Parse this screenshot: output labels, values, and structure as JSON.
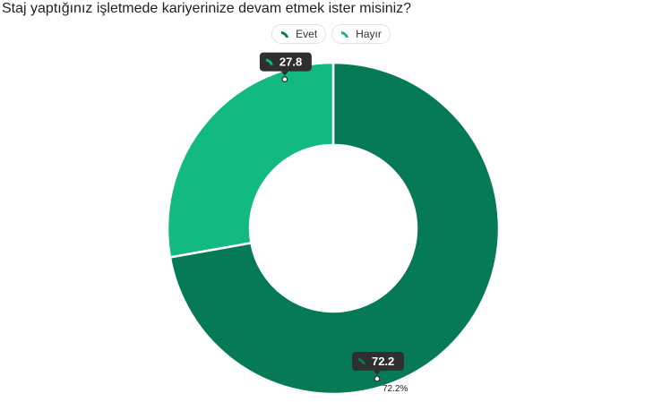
{
  "chart_data": {
    "type": "pie",
    "title": "Staj yaptığınız işletmede kariyerinize devam etmek ister misiniz?",
    "categories": [
      "Evet",
      "Hayır"
    ],
    "values": [
      72.2,
      27.8
    ],
    "colors": [
      "#067a56",
      "#12b981"
    ],
    "donut": true,
    "legend_position": "top-center",
    "tooltips": [
      "72.2",
      "27.8"
    ],
    "outside_labels": [
      "72.2%",
      "27.8"
    ]
  }
}
